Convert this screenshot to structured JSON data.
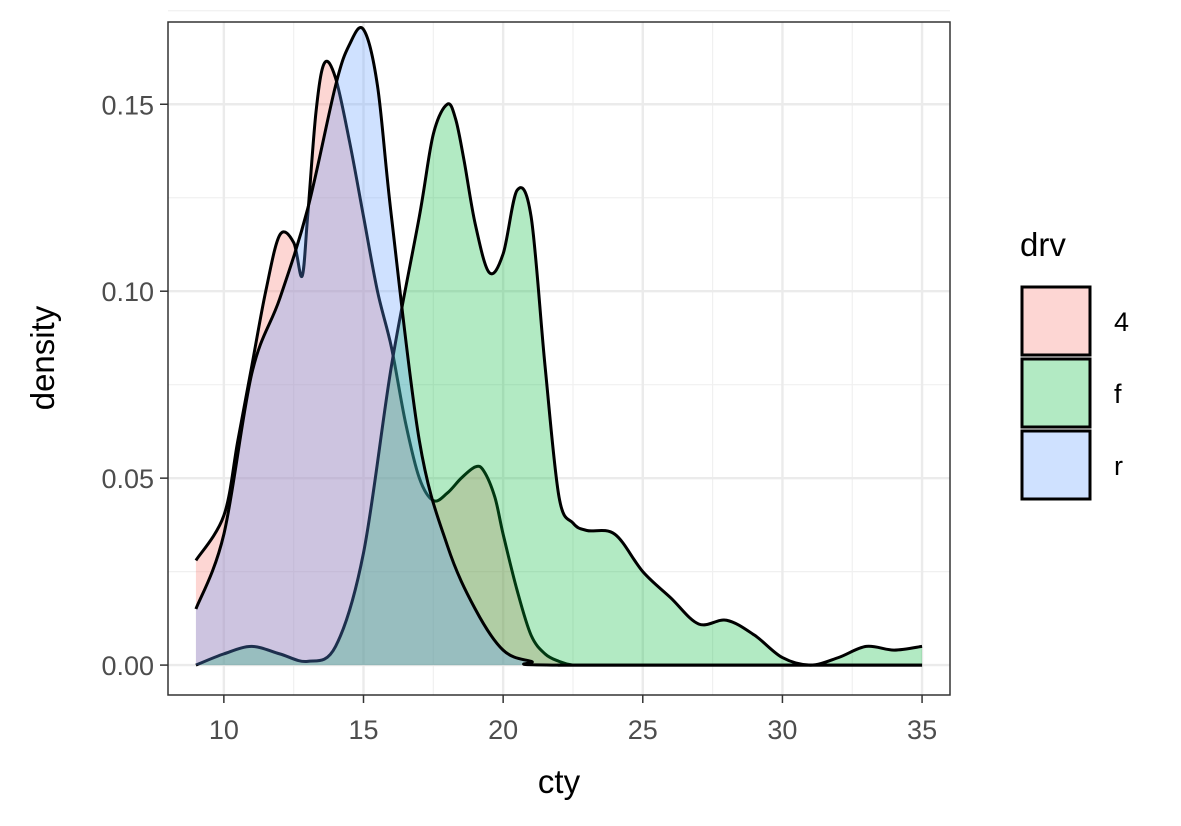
{
  "chart_data": {
    "type": "area",
    "subtype": "density",
    "xlabel": "cty",
    "ylabel": "density",
    "xlim": [
      8.0,
      36.0
    ],
    "ylim": [
      -0.008,
      0.172
    ],
    "xticks": [
      10,
      15,
      20,
      25,
      30,
      35
    ],
    "yticks": [
      0.0,
      0.05,
      0.1,
      0.15
    ],
    "ytick_labels": [
      "0.00",
      "0.05",
      "0.10",
      "0.15"
    ],
    "grid": true,
    "legend": {
      "title": "drv",
      "position": "right"
    },
    "series": [
      {
        "name": "4",
        "color": "#F8766D",
        "x": [
          9,
          10,
          10.5,
          11,
          11.5,
          12,
          12.5,
          12.8,
          13,
          13.3,
          13.6,
          14,
          14.5,
          15,
          15.5,
          16,
          16.5,
          17,
          17.5,
          18,
          18.5,
          19,
          19.3,
          19.7,
          20,
          20.5,
          21,
          21.5,
          22,
          22.5,
          23,
          35
        ],
        "y": [
          0.028,
          0.04,
          0.06,
          0.08,
          0.1,
          0.115,
          0.113,
          0.104,
          0.12,
          0.148,
          0.161,
          0.157,
          0.14,
          0.12,
          0.1,
          0.085,
          0.065,
          0.05,
          0.044,
          0.046,
          0.05,
          0.053,
          0.052,
          0.045,
          0.035,
          0.02,
          0.008,
          0.003,
          0.001,
          0.0,
          0.0,
          0.0
        ]
      },
      {
        "name": "f",
        "color": "#00BA38",
        "x": [
          9,
          10,
          11,
          12,
          13,
          14,
          15,
          16,
          17,
          17.5,
          18,
          18.3,
          18.6,
          19,
          19.5,
          20,
          20.5,
          21,
          21.5,
          22,
          22.5,
          23,
          24,
          25,
          26,
          27,
          28,
          29,
          30,
          31,
          32,
          33,
          34,
          35
        ],
        "y": [
          0.0,
          0.003,
          0.005,
          0.003,
          0.001,
          0.005,
          0.03,
          0.08,
          0.12,
          0.142,
          0.15,
          0.146,
          0.135,
          0.118,
          0.105,
          0.11,
          0.127,
          0.12,
          0.08,
          0.045,
          0.038,
          0.036,
          0.035,
          0.025,
          0.018,
          0.011,
          0.012,
          0.008,
          0.002,
          0.0,
          0.002,
          0.005,
          0.004,
          0.005
        ]
      },
      {
        "name": "r",
        "color": "#619CFF",
        "x": [
          9,
          10,
          11,
          12,
          13,
          14,
          14.5,
          15,
          15.5,
          16,
          17,
          18,
          19,
          20,
          21,
          22,
          35
        ],
        "y": [
          0.015,
          0.035,
          0.078,
          0.098,
          0.122,
          0.155,
          0.166,
          0.17,
          0.155,
          0.12,
          0.06,
          0.032,
          0.015,
          0.004,
          0.001,
          0.0,
          0.0
        ]
      }
    ]
  }
}
